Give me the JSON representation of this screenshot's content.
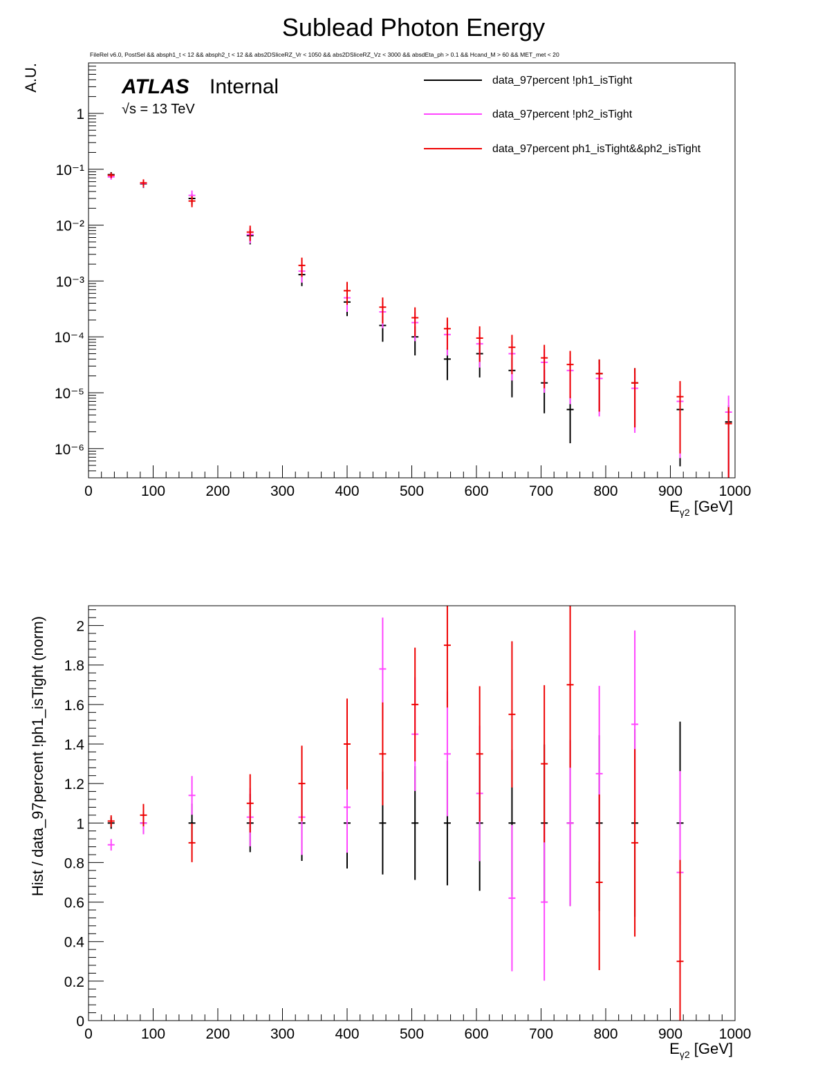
{
  "title": "Sublead Photon Energy",
  "cut_string": "FileRel v6.0, PostSel &&  absph1_t < 12 && absph2_t < 12 && abs2DSliceRZ_Vr < 1050 && abs2DSliceRZ_Vz < 3000 && absdEta_ph > 0.1 && Hcand_M > 60 && MET_met < 20",
  "atlas_label": "ATLAS",
  "atlas_status": "Internal",
  "energy_label": "√s = 13 TeV",
  "colors": {
    "black": "#000000",
    "magenta": "#ff44ff",
    "red": "#ee0000"
  },
  "chart_data": [
    {
      "type": "line",
      "name": "top",
      "title": "Sublead Photon Energy",
      "xlabel": "E_γ2 [GeV]",
      "ylabel": "A.U.",
      "xlim": [
        0,
        1000
      ],
      "ylim": [
        3e-07,
        8
      ],
      "yscale": "log",
      "x_ticks": [
        "0",
        "100",
        "200",
        "300",
        "400",
        "500",
        "600",
        "700",
        "800",
        "900",
        "1000"
      ],
      "y_ticks": [
        {
          "value": 1,
          "label": "1"
        },
        {
          "value": 0.1,
          "label": "10⁻¹"
        },
        {
          "value": 0.01,
          "label": "10⁻²"
        },
        {
          "value": 0.001,
          "label": "10⁻³"
        },
        {
          "value": 0.0001,
          "label": "10⁻⁴"
        },
        {
          "value": 1e-05,
          "label": "10⁻⁵"
        },
        {
          "value": 1e-06,
          "label": "10⁻⁶"
        }
      ],
      "legend": [
        {
          "label": "data_97percent !ph1_isTight",
          "color": "black"
        },
        {
          "label": "data_97percent !ph2_isTight",
          "color": "magenta"
        },
        {
          "label": "data_97percent ph1_isTight&&ph2_isTight",
          "color": "red"
        }
      ],
      "series": [
        {
          "name": "data_97percent !ph1_isTight",
          "color": "black",
          "x": [
            35,
            85,
            160,
            250,
            330,
            400,
            455,
            505,
            555,
            605,
            655,
            705,
            745,
            790,
            845,
            915,
            990
          ],
          "values": [
            0.08,
            0.055,
            0.03,
            0.0065,
            0.0013,
            0.00042,
            0.00016,
            0.0001,
            4e-05,
            5e-05,
            2.5e-05,
            1.5e-05,
            5e-06,
            2.2e-05,
            1.5e-05,
            5e-06,
            3e-06
          ]
        },
        {
          "name": "data_97percent !ph2_isTight",
          "color": "magenta",
          "x": [
            35,
            85,
            160,
            250,
            330,
            400,
            455,
            505,
            555,
            605,
            655,
            705,
            745,
            790,
            845,
            915,
            990
          ],
          "values": [
            0.073,
            0.056,
            0.034,
            0.0068,
            0.0015,
            0.0005,
            0.00028,
            0.00018,
            0.00011,
            7.5e-05,
            5e-05,
            3.5e-05,
            2.5e-05,
            1.8e-05,
            1.2e-05,
            7e-06,
            4.5e-06
          ]
        },
        {
          "name": "data_97percent ph1_isTight&&ph2_isTight",
          "color": "red",
          "x": [
            35,
            85,
            160,
            250,
            330,
            400,
            455,
            505,
            555,
            605,
            655,
            705,
            745,
            790,
            845,
            915,
            990
          ],
          "values": [
            0.078,
            0.057,
            0.027,
            0.0075,
            0.0019,
            0.00067,
            0.00034,
            0.00022,
            0.00014,
            9.5e-05,
            6.5e-05,
            4.2e-05,
            3.2e-05,
            2.2e-05,
            1.5e-05,
            8.5e-06,
            2.8e-06
          ]
        }
      ]
    },
    {
      "type": "line",
      "name": "bottom",
      "xlabel": "E_γ2 [GeV]",
      "ylabel": "Hist / data_97percent !ph1_isTight (norm)",
      "xlim": [
        0,
        1000
      ],
      "ylim": [
        0,
        2.1
      ],
      "x_ticks": [
        "0",
        "100",
        "200",
        "300",
        "400",
        "500",
        "600",
        "700",
        "800",
        "900",
        "1000"
      ],
      "y_ticks": [
        "0",
        "0.2",
        "0.4",
        "0.6",
        "0.8",
        "1",
        "1.2",
        "1.4",
        "1.6",
        "1.8",
        "2"
      ],
      "series": [
        {
          "name": "data_97percent !ph1_isTight",
          "color": "black",
          "x": [
            35,
            85,
            160,
            250,
            330,
            400,
            455,
            505,
            555,
            605,
            655,
            705,
            745,
            790,
            845,
            915
          ],
          "values": [
            1,
            1,
            1,
            1,
            1,
            1,
            1,
            1,
            1,
            1,
            1,
            1,
            1,
            1,
            1,
            1
          ]
        },
        {
          "name": "data_97percent !ph2_isTight",
          "color": "magenta",
          "x": [
            35,
            85,
            160,
            250,
            330,
            400,
            455,
            505,
            555,
            605,
            655,
            705,
            745,
            790,
            845,
            915
          ],
          "values": [
            0.89,
            1.0,
            1.14,
            1.03,
            1.03,
            1.08,
            1.78,
            1.45,
            1.35,
            1.15,
            0.62,
            0.6,
            1.0,
            1.25,
            1.5,
            0.75
          ]
        },
        {
          "name": "data_97percent ph1_isTight&&ph2_isTight",
          "color": "red",
          "x": [
            35,
            85,
            160,
            250,
            330,
            400,
            455,
            505,
            555,
            605,
            655,
            705,
            745,
            790,
            845,
            915
          ],
          "values": [
            1.01,
            1.04,
            0.9,
            1.1,
            1.2,
            1.4,
            1.35,
            1.6,
            1.9,
            1.35,
            1.55,
            1.3,
            1.7,
            0.7,
            0.9,
            0.3
          ]
        }
      ]
    }
  ]
}
